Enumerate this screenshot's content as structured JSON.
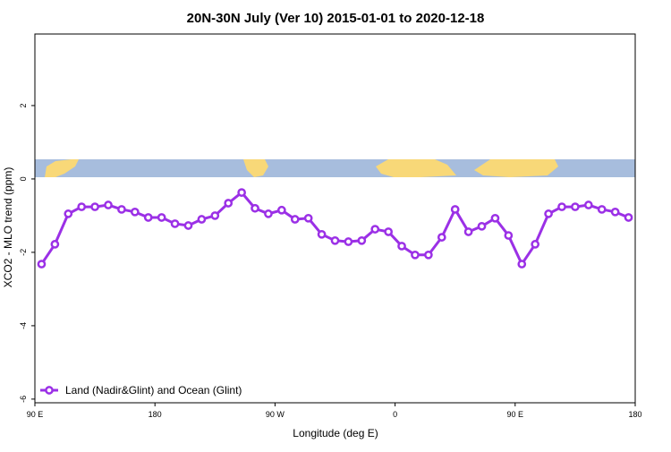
{
  "chart_data": {
    "type": "line",
    "title": "20N-30N July (Ver 10)   2015-01-01 to 2020-12-18",
    "xlabel": "Longitude (deg E)",
    "ylabel": "XCO2 - MLO trend (ppm)",
    "x": [
      95,
      105,
      115,
      125,
      135,
      145,
      155,
      165,
      175,
      185,
      195,
      205,
      215,
      225,
      235,
      245,
      255,
      265,
      275,
      285,
      295,
      305,
      315,
      325,
      335,
      345,
      355,
      365,
      375,
      385,
      395,
      405,
      415,
      425,
      435,
      445,
      455,
      465,
      475,
      485,
      495,
      505,
      515,
      525,
      535
    ],
    "series": [
      {
        "name": "Land (Nadir&Glint) and Ocean (Glint)",
        "color": "#9b30e6",
        "values": [
          -2.32,
          -1.78,
          -0.95,
          -0.76,
          -0.76,
          -0.71,
          -0.83,
          -0.9,
          -1.05,
          -1.05,
          -1.22,
          -1.27,
          -1.1,
          -1.0,
          -0.66,
          -0.37,
          -0.8,
          -0.95,
          -0.85,
          -1.1,
          -1.07,
          -1.51,
          -1.68,
          -1.71,
          -1.68,
          -1.37,
          -1.44,
          -1.83,
          -2.07,
          -2.07,
          -1.59,
          -0.83,
          -1.44,
          -1.29,
          -1.07,
          -1.54,
          -2.32,
          -1.78,
          -0.95,
          -0.76,
          -0.76,
          -0.71,
          -0.83,
          -0.9,
          -1.05
        ]
      }
    ],
    "xlim": [
      90,
      540
    ],
    "xticks": [
      {
        "value": 90,
        "label": "90 E"
      },
      180,
      {
        "value": 270,
        "label": "90 W"
      },
      {
        "value": 360,
        "label": "0"
      },
      {
        "value": 450,
        "label": "90 E"
      },
      {
        "value": 540,
        "label": "180"
      }
    ],
    "ylim": [
      -6.1,
      3.95
    ],
    "yticks": [
      -6,
      -4,
      -2,
      0,
      2
    ],
    "legend": "bottom-left"
  }
}
